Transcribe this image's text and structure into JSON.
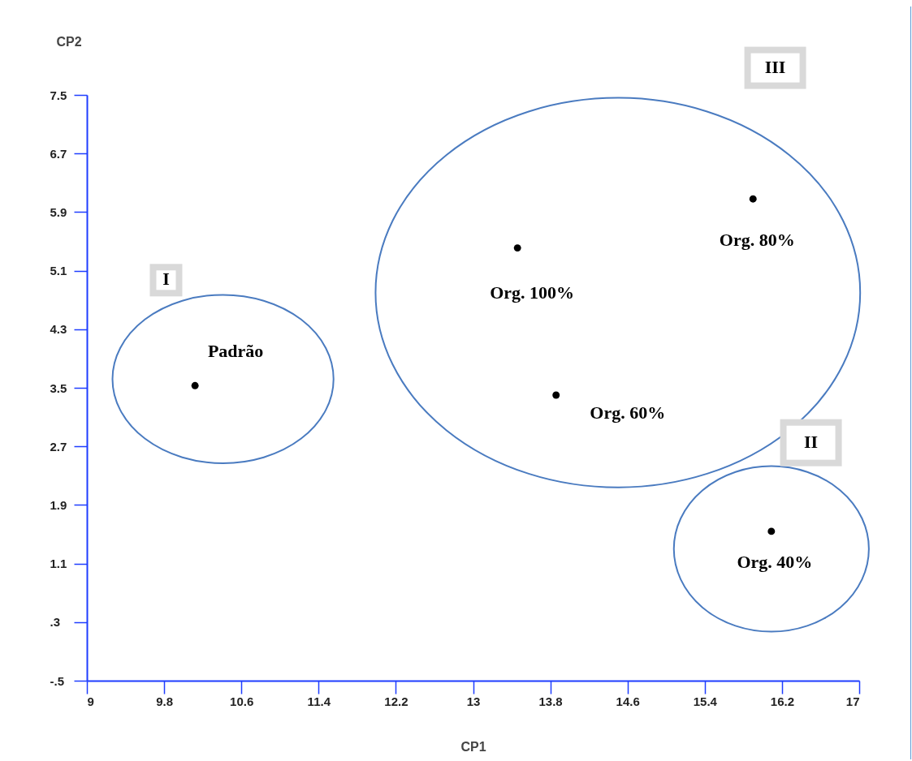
{
  "chart_data": {
    "type": "scatter",
    "xlabel": "CP1",
    "ylabel": "CP2",
    "xlim": [
      9,
      17
    ],
    "ylim": [
      -0.5,
      7.5
    ],
    "xticks": [
      9,
      9.8,
      10.6,
      11.4,
      12.2,
      13,
      13.8,
      14.6,
      15.4,
      16.2,
      17
    ],
    "yticks": [
      {
        "value": -0.5,
        "label": "-.5"
      },
      {
        "value": 0.3,
        "label": ".3"
      },
      1.1,
      1.9,
      2.7,
      3.5,
      4.3,
      5.1,
      5.9,
      6.7,
      7.5
    ],
    "x": [
      10.12,
      13.46,
      15.9,
      13.86,
      16.09
    ],
    "series": [
      {
        "color": "#000000",
        "values": [
          3.53,
          5.41,
          6.08,
          3.4,
          1.54
        ]
      }
    ],
    "marker": "circle",
    "grid": false,
    "annotations": [
      {
        "text": "Padrão",
        "x": 10.12,
        "y": 3.53
      },
      {
        "text": "Org. 100%",
        "x": 13.46,
        "y": 5.41
      },
      {
        "text": "Org. 80%",
        "x": 15.9,
        "y": 6.08
      },
      {
        "text": "Org. 60%",
        "x": 13.86,
        "y": 3.4
      },
      {
        "text": "Org. 40%",
        "x": 16.09,
        "y": 1.54
      },
      "I",
      "III",
      "II"
    ]
  }
}
